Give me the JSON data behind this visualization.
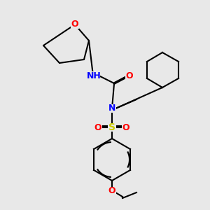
{
  "bg_color": "#e8e8e8",
  "bond_color": "#000000",
  "bond_width": 1.5,
  "atom_colors": {
    "O": "#ff0000",
    "N": "#0000ff",
    "S": "#cccc00",
    "H": "#6fa8a8",
    "C": "#000000"
  },
  "font_size": 9,
  "font_size_small": 8
}
